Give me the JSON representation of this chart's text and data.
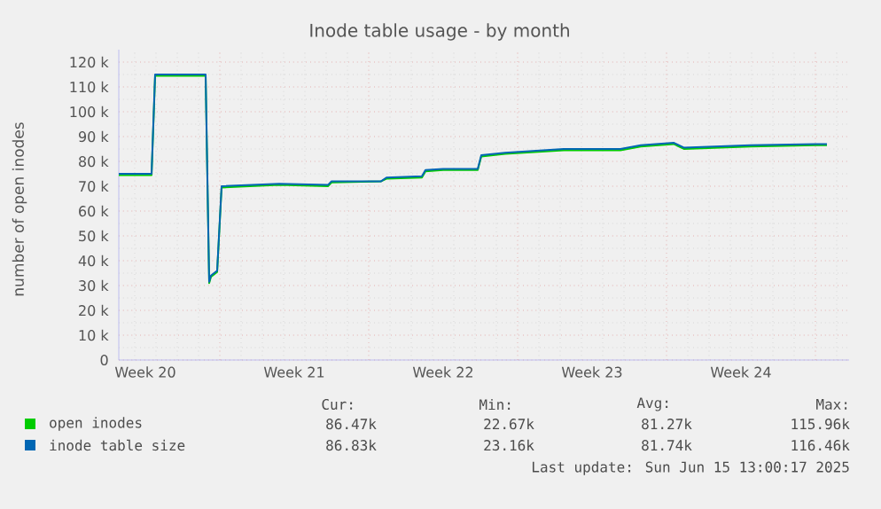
{
  "chart_data": {
    "type": "line",
    "title": "Inode table usage - by month",
    "ylabel": "number of open inodes",
    "xlim": [
      "2025-05-13T06:00",
      "2025-06-16T14:00"
    ],
    "ylim": [
      0,
      125000
    ],
    "xticks": [
      {
        "value": "2025-05-14T12:00",
        "label": "Week 20"
      },
      {
        "value": "2025-05-21T12:00",
        "label": "Week 21"
      },
      {
        "value": "2025-05-28T12:00",
        "label": "Week 22"
      },
      {
        "value": "2025-06-04T12:00",
        "label": "Week 23"
      },
      {
        "value": "2025-06-11T12:00",
        "label": "Week 24"
      },
      {
        "value": "2025-05-18",
        "label": null
      },
      {
        "value": "2025-05-25",
        "label": null
      },
      {
        "value": "2025-06-01",
        "label": null
      },
      {
        "value": "2025-06-08",
        "label": null
      },
      {
        "value": "2025-06-15",
        "label": null
      }
    ],
    "yticks": [
      0,
      {
        "value": 10000,
        "label": "10 k"
      },
      {
        "value": 20000,
        "label": "20 k"
      },
      {
        "value": 30000,
        "label": "30 k"
      },
      {
        "value": 40000,
        "label": "40 k"
      },
      {
        "value": 50000,
        "label": "50 k"
      },
      {
        "value": 60000,
        "label": "60 k"
      },
      {
        "value": 70000,
        "label": "70 k"
      },
      {
        "value": 80000,
        "label": "80 k"
      },
      {
        "value": 90000,
        "label": "90 k"
      },
      {
        "value": 100000,
        "label": "100 k"
      },
      {
        "value": 110000,
        "label": "110 k"
      },
      {
        "value": 120000,
        "label": "120 k"
      }
    ],
    "grid": true,
    "legend": "bottom",
    "marker": "none",
    "line_style": "solid",
    "x": [
      "2025-05-13T06:00",
      "2025-05-14T19:00",
      "2025-05-14T23:00",
      "2025-05-17T08:00",
      "2025-05-17T12:00",
      "2025-05-17T14:00",
      "2025-05-17T21:00",
      "2025-05-18T02:00",
      "2025-05-20T19:00",
      "2025-05-23T02:00",
      "2025-05-23T06:00",
      "2025-05-25T14:00",
      "2025-05-25T20:00",
      "2025-05-27T12:00",
      "2025-05-27T16:00",
      "2025-05-28T12:00",
      "2025-05-30T03:00",
      "2025-05-30T07:00",
      "2025-05-31T10:00",
      "2025-06-03T04:00",
      "2025-06-05T20:00",
      "2025-06-06T19:00",
      "2025-06-08T08:00",
      "2025-06-08T20:00",
      "2025-06-11T23:00",
      "2025-06-15T00:00",
      "2025-06-15T13:00"
    ],
    "series": [
      {
        "name": "open inodes",
        "color": "#00cc00",
        "values": [
          74500,
          74500,
          114500,
          114500,
          31000,
          33500,
          35500,
          69500,
          70500,
          70000,
          71500,
          72000,
          73000,
          73500,
          76000,
          76500,
          76500,
          82000,
          83000,
          84500,
          84500,
          86000,
          87000,
          85000,
          86000,
          86500,
          86500
        ]
      },
      {
        "name": "inode table size",
        "color": "#0066b3",
        "values": [
          75000,
          75000,
          115000,
          115000,
          31500,
          34000,
          36000,
          70000,
          71000,
          70500,
          72000,
          72000,
          73500,
          74000,
          76500,
          77000,
          77000,
          82500,
          83500,
          85000,
          85000,
          86500,
          87500,
          85500,
          86500,
          87000,
          87000
        ]
      }
    ],
    "annotations": [
      "Cur:",
      "Min:",
      "Avg:",
      "Max:",
      "86.47k",
      "22.67k",
      "81.27k",
      "115.96k",
      "86.83k",
      "23.16k",
      "81.74k",
      "116.46k",
      "Last update: Sun Jun 15 13:00:17 2025"
    ]
  }
}
